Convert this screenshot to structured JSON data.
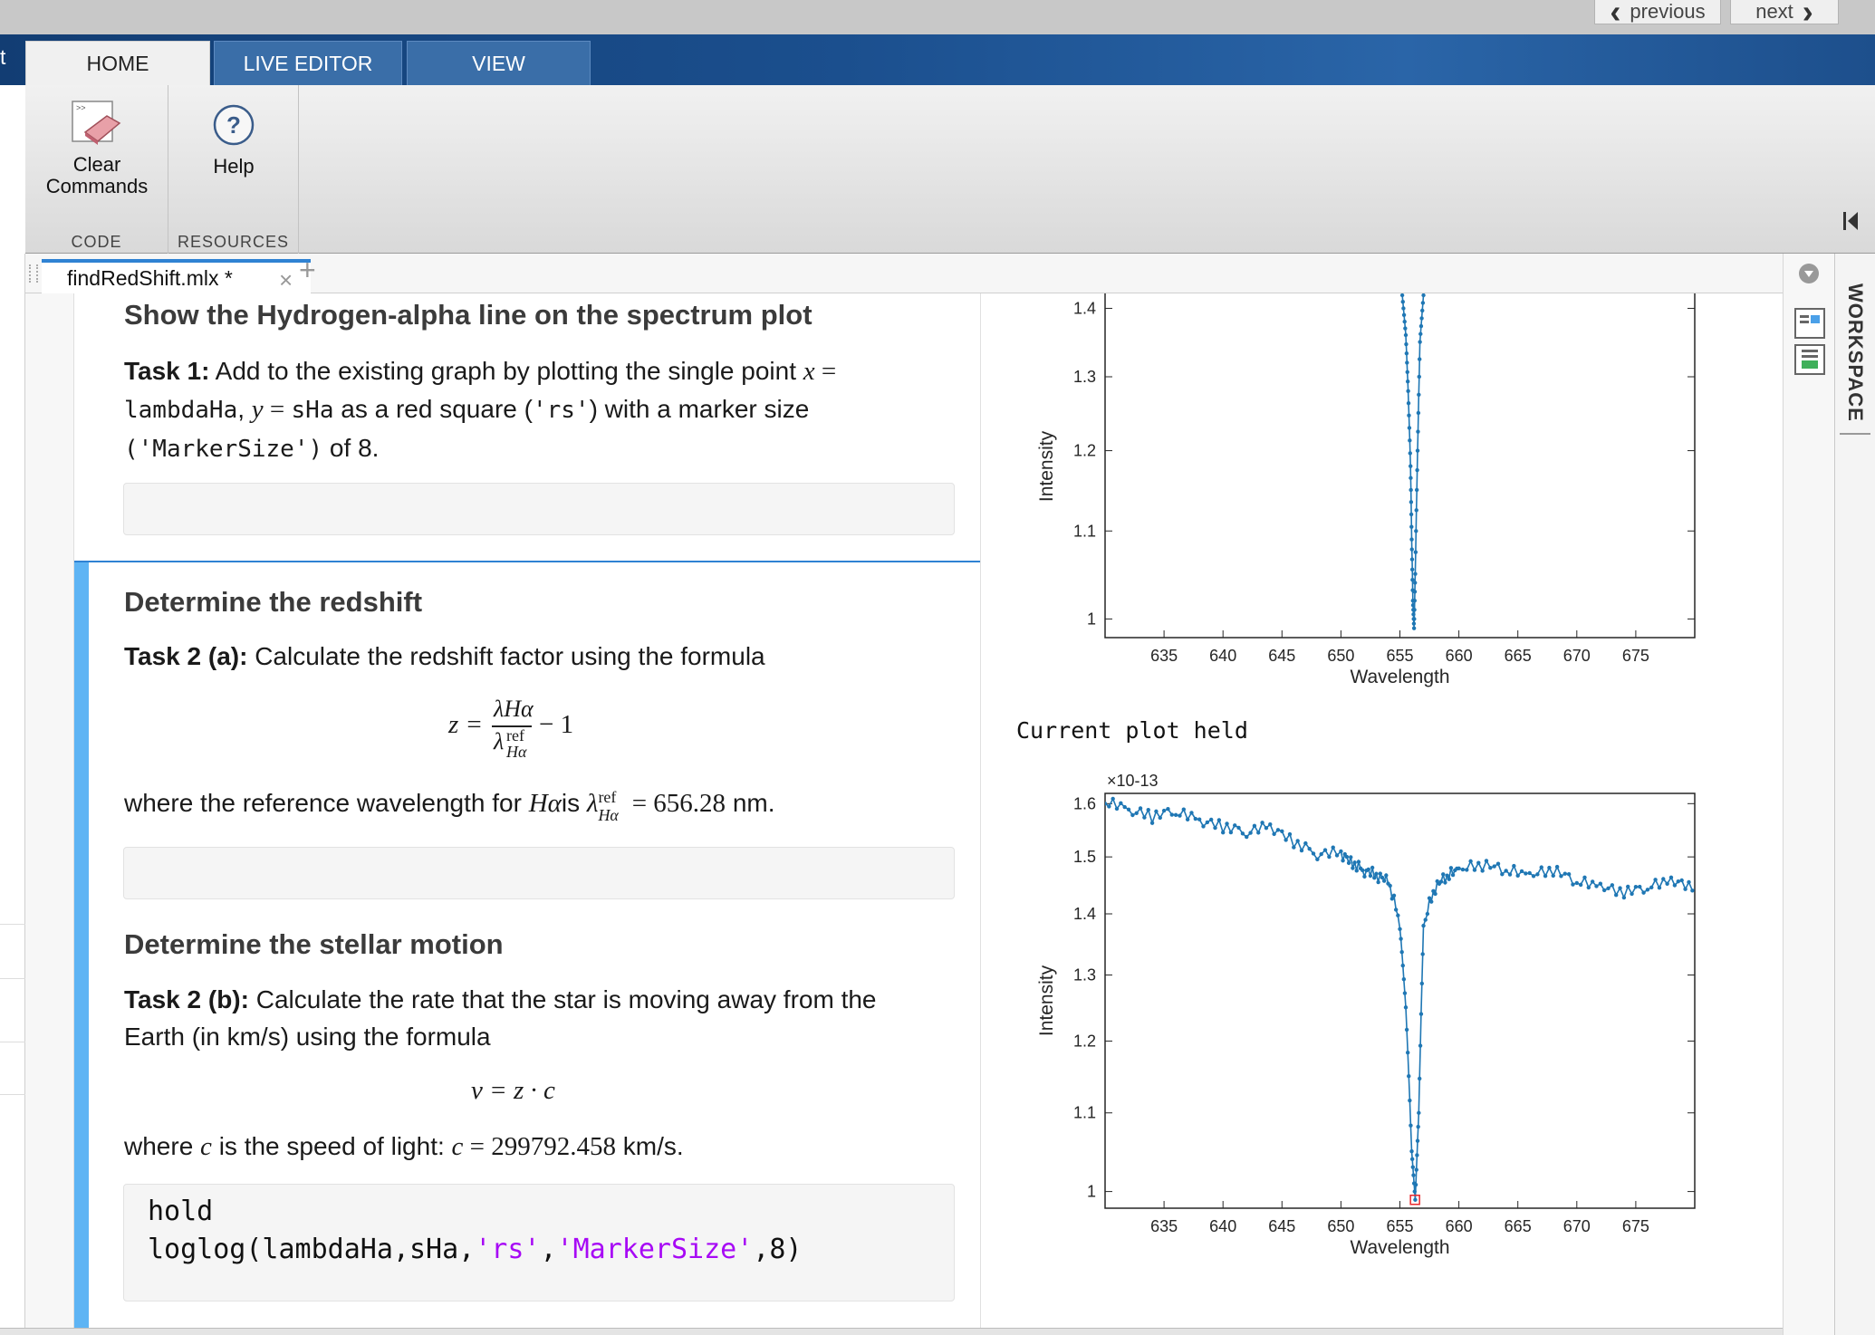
{
  "topbar": {
    "previous": "previous",
    "next": "next"
  },
  "ribbon_tabs": [
    "HOME",
    "LIVE EDITOR",
    "VIEW"
  ],
  "left_edge_char": "t",
  "ribbon": {
    "clear_commands": "Clear\nCommands",
    "help": "Help",
    "group_code": "CODE",
    "group_resources": "RESOURCES"
  },
  "workspace_label": "WORKSPACE",
  "editor": {
    "file_tab": "findRedShift.mlx *",
    "close": "×",
    "add": "+"
  },
  "doc": {
    "h_top": "Show the Hydrogen-alpha line on the spectrum plot",
    "task1_label": "Task 1:",
    "task1_a": " Add to the existing graph by plotting the single point ",
    "task1_x": "x",
    "task1_eq": " = ",
    "task1_code1": "lambdaHa",
    "task1_comma": ", ",
    "task1_y": "y",
    "task1_code2": "sHa",
    "task1_b": " as a red square (",
    "task1_code3": "'rs'",
    "task1_c": ") with a marker size",
    "task1_code4": "('MarkerSize')",
    "task1_d": " of 8.",
    "h_redshift": "Determine the redshift",
    "task2a_label": "Task 2 (a):",
    "task2a_text": " Calculate the redshift factor using the formula",
    "formula_z": "z =",
    "formula_num": "λHα",
    "formula_den": "λ",
    "formula_den_sup": "ref",
    "formula_den_sub": "Hα",
    "formula_minus": "− 1",
    "ref_text_a": "where the reference wavelength for ",
    "ref_halpha": "Hα",
    "ref_is": "is ",
    "ref_lambda": "λ",
    "ref_sup": "ref",
    "ref_sub": "Hα",
    "ref_value": " = 656.28",
    "ref_unit": " nm.",
    "h_motion": "Determine the stellar motion",
    "task2b_label": "Task 2 (b):",
    "task2b_text1": " Calculate the rate that the star is moving away from the",
    "task2b_text2": "Earth (in km/s) using the formula",
    "formula_v": "v = z · c",
    "speed_a": "where ",
    "speed_c": "c",
    "speed_b": " is the speed of light: ",
    "speed_c2": "c",
    "speed_value": " = 299792.458",
    "speed_unit": " km/s.",
    "code_line1": "hold",
    "code_line2_a": "loglog(lambdaHa,sHa,",
    "code_line2_s1": "'rs'",
    "code_line2_b": ",",
    "code_line2_s2": "'MarkerSize'",
    "code_line2_c": ",8)",
    "held_text": "Current plot held"
  },
  "chart_data": [
    {
      "type": "line",
      "title": "",
      "xlabel": "Wavelength",
      "ylabel": "Intensity",
      "xlim": [
        630,
        680
      ],
      "x_ticks": [
        "635",
        "640",
        "645",
        "650",
        "655",
        "660",
        "665",
        "670",
        "675"
      ],
      "y_ticks": [
        "1",
        "1.1",
        "1.2",
        "1.3",
        "1.4"
      ],
      "ylim": [
        0.98,
        1.42
      ],
      "scale": "log",
      "note": "partially visible, upper part cropped",
      "series": [
        {
          "x": [
            655.2,
            655.5,
            655.7,
            655.9,
            656.0,
            656.1,
            656.2,
            656.3,
            656.5,
            656.7,
            657.0
          ],
          "y": [
            1.42,
            1.36,
            1.28,
            1.18,
            1.09,
            1.02,
            0.99,
            1.05,
            1.2,
            1.35,
            1.42
          ]
        }
      ],
      "color": "#1f77b4"
    },
    {
      "type": "line",
      "title": "",
      "xlabel": "Wavelength",
      "ylabel": "Intensity",
      "y_multiplier": "×10-13",
      "xlim": [
        630,
        680
      ],
      "ylim": [
        0.98,
        1.62
      ],
      "scale": "log",
      "x_ticks": [
        "635",
        "640",
        "645",
        "650",
        "655",
        "660",
        "665",
        "670",
        "675"
      ],
      "y_ticks": [
        "1",
        "1.1",
        "1.2",
        "1.3",
        "1.4",
        "1.5",
        "1.6"
      ],
      "series": [
        {
          "name": "",
          "x": [
            630,
            632,
            634,
            636,
            638,
            640,
            642,
            644,
            646,
            648,
            650,
            651,
            652,
            653,
            654,
            655,
            655.5,
            656,
            656.3,
            656.6,
            657,
            658,
            659,
            660,
            662,
            664,
            666,
            668,
            670,
            672,
            674,
            676,
            678,
            679.8
          ],
          "y": [
            1.6,
            1.58,
            1.57,
            1.58,
            1.56,
            1.55,
            1.54,
            1.55,
            1.52,
            1.5,
            1.5,
            1.48,
            1.47,
            1.46,
            1.45,
            1.38,
            1.25,
            1.05,
            0.99,
            1.1,
            1.38,
            1.44,
            1.46,
            1.47,
            1.48,
            1.47,
            1.46,
            1.47,
            1.45,
            1.44,
            1.43,
            1.44,
            1.45,
            1.44
          ]
        }
      ],
      "marker_point": {
        "x": 656.28,
        "y": 0.99,
        "style": "red square"
      },
      "color": "#1f77b4",
      "marker_color": "#e8282d"
    }
  ],
  "colors": {
    "accent": "#2f82d3",
    "selection_bar": "#5eb4f4",
    "string": "#a709f5",
    "plot_line": "#1f77b4"
  }
}
